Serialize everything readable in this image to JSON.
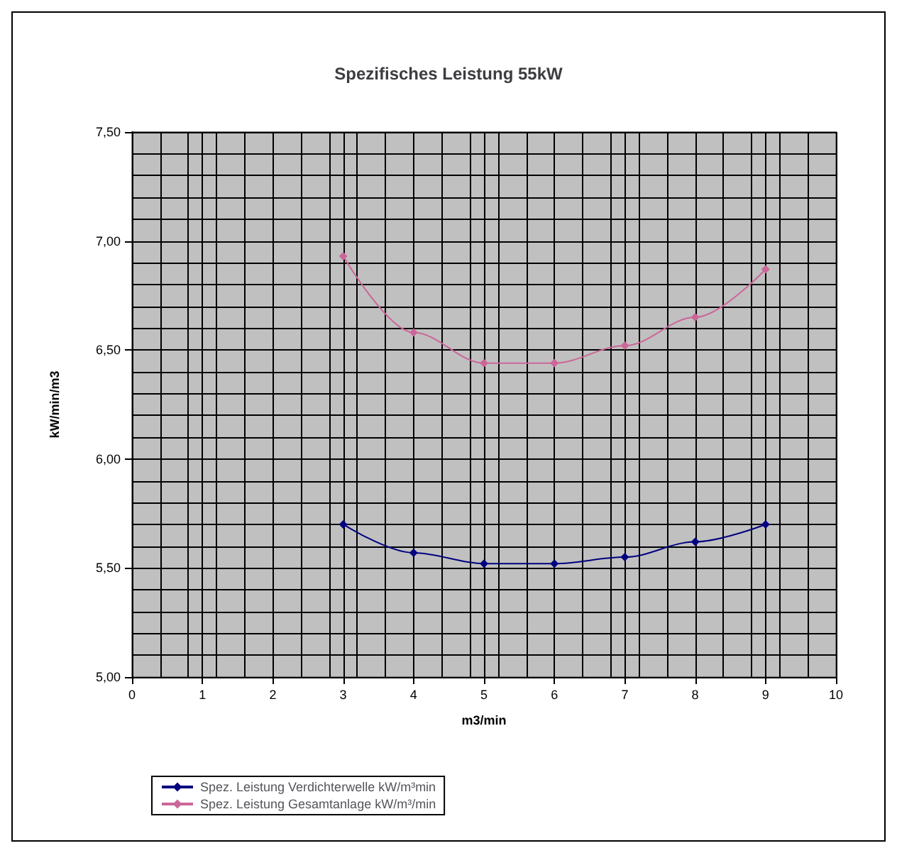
{
  "chart_data": {
    "type": "line",
    "title": "Spezifisches Leistung 55kW",
    "xlabel": "m3/min",
    "ylabel": "kW/min/m3",
    "x": [
      3,
      4,
      5,
      6,
      7,
      8,
      9
    ],
    "series": [
      {
        "name": "Spez. Leistung Verdichterwelle kW/m³min",
        "color": "#000080",
        "values": [
          5.7,
          5.57,
          5.52,
          5.52,
          5.55,
          5.62,
          5.7
        ]
      },
      {
        "name": "Spez. Leistung Gesamtanlage kW/m³/min",
        "color": "#cc6699",
        "values": [
          6.93,
          6.58,
          6.44,
          6.44,
          6.52,
          6.65,
          6.87
        ]
      }
    ],
    "xlim": [
      0,
      10
    ],
    "xticks": [
      0,
      1,
      2,
      3,
      4,
      5,
      6,
      7,
      8,
      9,
      10
    ],
    "ylim": [
      5,
      7.5
    ],
    "yticks": [
      {
        "value": 5,
        "label": "5,00"
      },
      {
        "value": 5.5,
        "label": "5,50"
      },
      {
        "value": 6,
        "label": "6,00"
      },
      {
        "value": 6.5,
        "label": "6,50"
      },
      {
        "value": 7,
        "label": "7,00"
      },
      {
        "value": 7.5,
        "label": "7,50"
      }
    ],
    "grid": true,
    "legend": "bottom left",
    "marker": "diamond",
    "line_style": "solid"
  }
}
